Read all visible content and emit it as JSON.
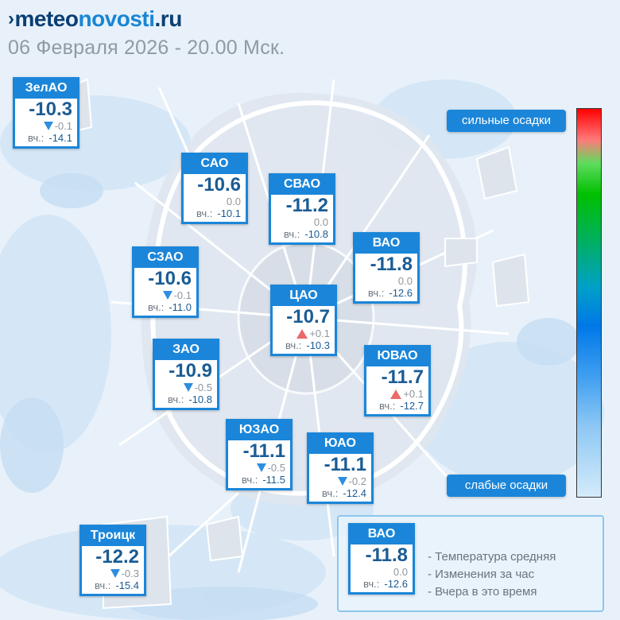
{
  "header": {
    "logo_part1": "meteo",
    "logo_part2": "novosti",
    "logo_part3": ".ru",
    "subtitle": "06 Февраля 2026 - 20.00 Мск."
  },
  "districts": [
    {
      "name": "ЗелАО",
      "temp": "-10.3",
      "delta": "-0.1",
      "trend": "down",
      "yesterday_label": "вч.:",
      "yesterday": "-14.1"
    },
    {
      "name": "САО",
      "temp": "-10.6",
      "delta": "0.0",
      "trend": "none",
      "yesterday_label": "вч.:",
      "yesterday": "-10.1"
    },
    {
      "name": "СВАО",
      "temp": "-11.2",
      "delta": "0.0",
      "trend": "none",
      "yesterday_label": "вч.:",
      "yesterday": "-10.8"
    },
    {
      "name": "ВАО",
      "temp": "-11.8",
      "delta": "0.0",
      "trend": "none",
      "yesterday_label": "вч.:",
      "yesterday": "-12.6"
    },
    {
      "name": "СЗАО",
      "temp": "-10.6",
      "delta": "-0.1",
      "trend": "down",
      "yesterday_label": "вч.:",
      "yesterday": "-11.0"
    },
    {
      "name": "ЦАО",
      "temp": "-10.7",
      "delta": "+0.1",
      "trend": "up",
      "yesterday_label": "вч.:",
      "yesterday": "-10.3"
    },
    {
      "name": "ЗАО",
      "temp": "-10.9",
      "delta": "-0.5",
      "trend": "down",
      "yesterday_label": "вч.:",
      "yesterday": "-10.8"
    },
    {
      "name": "ЮВАО",
      "temp": "-11.7",
      "delta": "+0.1",
      "trend": "up",
      "yesterday_label": "вч.:",
      "yesterday": "-12.7"
    },
    {
      "name": "ЮЗАО",
      "temp": "-11.1",
      "delta": "-0.5",
      "trend": "down",
      "yesterday_label": "вч.:",
      "yesterday": "-11.5"
    },
    {
      "name": "ЮАО",
      "temp": "-11.1",
      "delta": "-0.2",
      "trend": "down",
      "yesterday_label": "вч.:",
      "yesterday": "-12.4"
    },
    {
      "name": "Троицк",
      "temp": "-12.2",
      "delta": "-0.3",
      "trend": "down",
      "yesterday_label": "вч.:",
      "yesterday": "-15.4"
    }
  ],
  "legend": {
    "precip_strong": "сильные осадки",
    "precip_weak": "слабые осадки",
    "sample": {
      "name": "ВАО",
      "temp": "-11.8",
      "delta": "0.0",
      "yesterday_label": "вч.:",
      "yesterday": "-12.6"
    },
    "line1": "- Температура средняя",
    "line2": "- Изменения за час",
    "line3": "- Вчера в это время"
  },
  "colors": {
    "accent": "#1b86d9",
    "temp_text": "#1a5c94",
    "trend_down": "#2f8ee0",
    "trend_up": "#ea6a6a"
  }
}
